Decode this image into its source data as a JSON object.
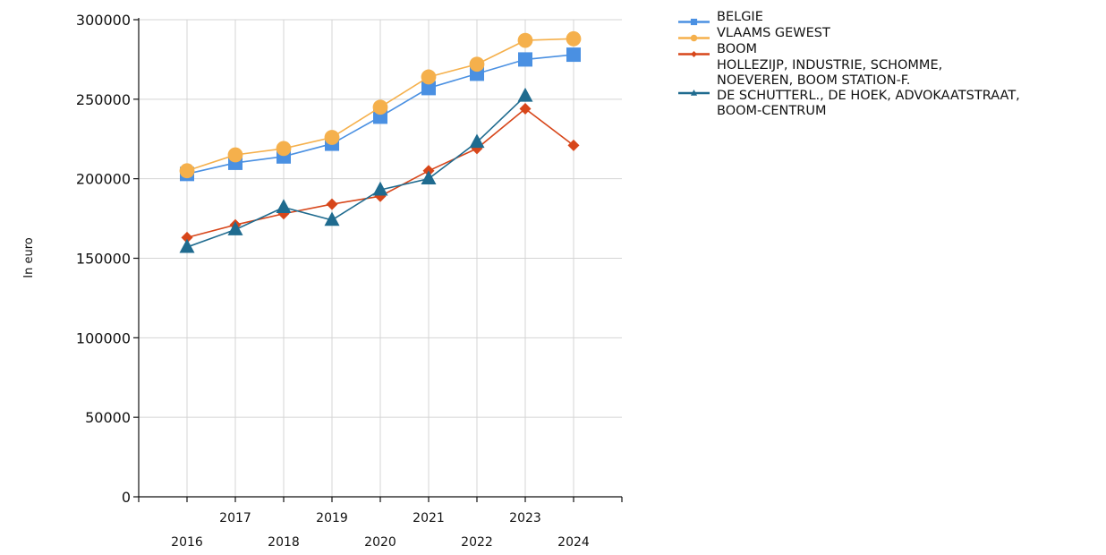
{
  "chart_data": {
    "type": "line",
    "title": "",
    "xlabel": "",
    "ylabel": "In euro",
    "categories": [
      "2016",
      "2017",
      "2018",
      "2019",
      "2020",
      "2021",
      "2022",
      "2023",
      "2024"
    ],
    "ylim": [
      0,
      300000
    ],
    "yticks": [
      "0",
      "50000",
      "100000",
      "150000",
      "200000",
      "250000",
      "300000"
    ],
    "grid": true,
    "legend_position": "top-right",
    "series": [
      {
        "name": "BELGIE",
        "color": "#4a90e2",
        "marker": "square",
        "values": [
          203000,
          210000,
          214000,
          222000,
          239000,
          257000,
          266000,
          275000,
          278000
        ]
      },
      {
        "name": "VLAAMS GEWEST",
        "color": "#f5b04c",
        "marker": "circle",
        "values": [
          205000,
          215000,
          219000,
          226000,
          245000,
          264000,
          272000,
          287000,
          288000
        ]
      },
      {
        "name": "BOOM",
        "color": "#d7461a",
        "marker": "diamond",
        "values": [
          163000,
          171000,
          178000,
          184000,
          189000,
          205000,
          219000,
          244000,
          221000
        ]
      },
      {
        "name": "HOLLEZIJP, INDUSTRIE, SCHOMME, NOEVEREN, BOOM STATION-F. DE SCHUTTERL., DE HOEK, ADVOKAATSTRAAT, BOOM-CENTRUM",
        "legend_lines": [
          "HOLLEZIJP, INDUSTRIE, SCHOMME,",
          "NOEVEREN, BOOM STATION-F.",
          "DE SCHUTTERL., DE HOEK, ADVOKAATSTRAAT,",
          "BOOM-CENTRUM"
        ],
        "color": "#1f6b8f",
        "marker": "triangle",
        "values": [
          157000,
          168000,
          182000,
          174000,
          193000,
          200000,
          223000,
          252000,
          null
        ]
      }
    ]
  }
}
